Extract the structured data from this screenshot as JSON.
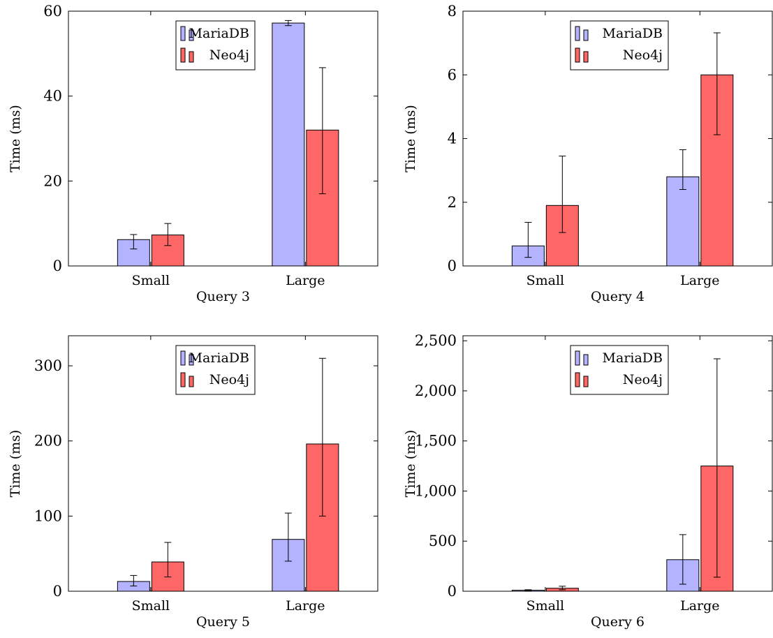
{
  "chart_data": [
    {
      "type": "bar",
      "xlabel": "Query 3",
      "ylabel": "Time (ms)",
      "categories": [
        "Small",
        "Large"
      ],
      "ylim": [
        0,
        60
      ],
      "yticks": [
        0,
        20,
        40,
        60
      ],
      "ytick_labels": [
        "0",
        "20",
        "40",
        "60"
      ],
      "legend": "top-center",
      "grid": false,
      "series": [
        {
          "name": "MariaDB",
          "color": "#b3b3ff",
          "values": [
            6.2,
            57.2
          ],
          "err_low": [
            4.0,
            56.6
          ],
          "err_high": [
            7.4,
            57.8
          ]
        },
        {
          "name": "Neo4j",
          "color": "#ff6666",
          "values": [
            7.3,
            32.0
          ],
          "err_low": [
            4.8,
            17.0
          ],
          "err_high": [
            10.0,
            46.7
          ]
        }
      ]
    },
    {
      "type": "bar",
      "xlabel": "Query 4",
      "ylabel": "Time (ms)",
      "categories": [
        "Small",
        "Large"
      ],
      "ylim": [
        0,
        8
      ],
      "yticks": [
        0,
        2,
        4,
        6,
        8
      ],
      "ytick_labels": [
        "0",
        "2",
        "4",
        "6",
        "8"
      ],
      "legend": "top-center",
      "grid": false,
      "series": [
        {
          "name": "MariaDB",
          "color": "#b3b3ff",
          "values": [
            0.63,
            2.8
          ],
          "err_low": [
            0.27,
            2.4
          ],
          "err_high": [
            1.37,
            3.65
          ]
        },
        {
          "name": "Neo4j",
          "color": "#ff6666",
          "values": [
            1.9,
            6.0
          ],
          "err_low": [
            1.05,
            4.12
          ],
          "err_high": [
            3.45,
            7.32
          ]
        }
      ]
    },
    {
      "type": "bar",
      "xlabel": "Query 5",
      "ylabel": "Time (ms)",
      "categories": [
        "Small",
        "Large"
      ],
      "ylim": [
        0,
        340
      ],
      "yticks": [
        0,
        100,
        200,
        300
      ],
      "ytick_labels": [
        "0",
        "100",
        "200",
        "300"
      ],
      "legend": "top-center",
      "grid": false,
      "series": [
        {
          "name": "MariaDB",
          "color": "#b3b3ff",
          "values": [
            13,
            69
          ],
          "err_low": [
            7,
            40
          ],
          "err_high": [
            21,
            104
          ]
        },
        {
          "name": "Neo4j",
          "color": "#ff6666",
          "values": [
            39,
            196
          ],
          "err_low": [
            19,
            100
          ],
          "err_high": [
            65,
            310
          ]
        }
      ]
    },
    {
      "type": "bar",
      "xlabel": "Query 6",
      "ylabel": "Time (ms)",
      "categories": [
        "Small",
        "Large"
      ],
      "ylim": [
        0,
        2550
      ],
      "yticks": [
        0,
        500,
        1000,
        1500,
        2000,
        2500
      ],
      "ytick_labels": [
        "0",
        "500",
        "1,000",
        "1,500",
        "2,000",
        "2,500"
      ],
      "legend": "top-center",
      "grid": false,
      "series": [
        {
          "name": "MariaDB",
          "color": "#b3b3ff",
          "values": [
            10,
            315
          ],
          "err_low": [
            5,
            70
          ],
          "err_high": [
            15,
            565
          ]
        },
        {
          "name": "Neo4j",
          "color": "#ff6666",
          "values": [
            30,
            1250
          ],
          "err_low": [
            15,
            140
          ],
          "err_high": [
            50,
            2320
          ]
        }
      ]
    }
  ]
}
